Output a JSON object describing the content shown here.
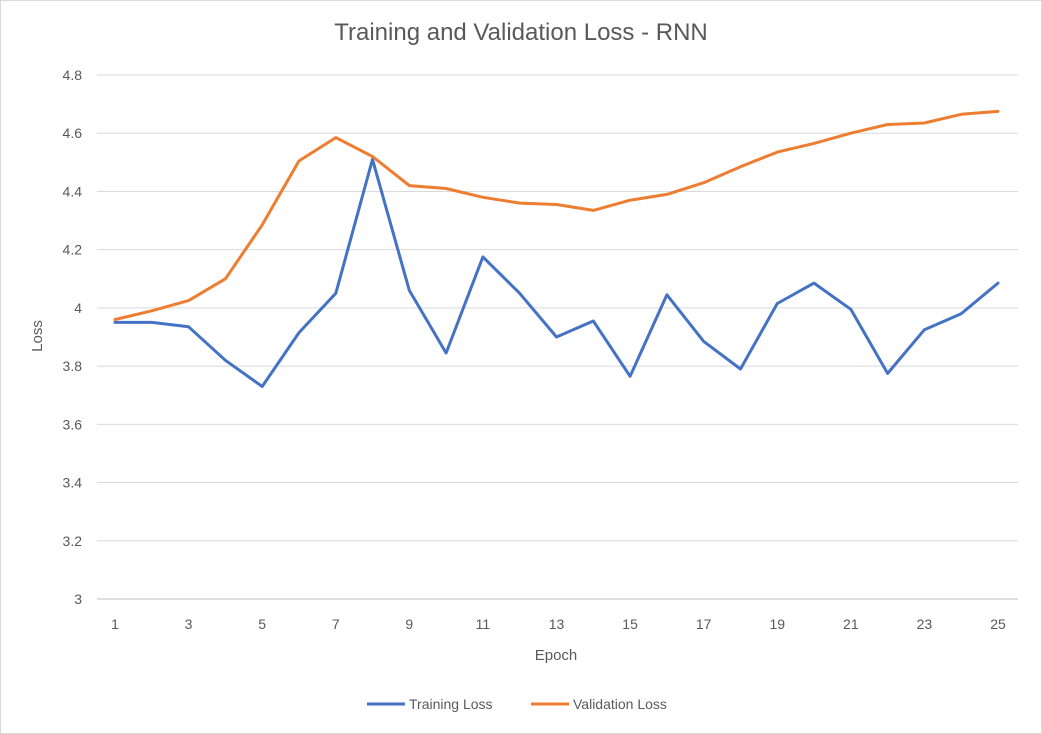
{
  "chart_data": {
    "type": "line",
    "title": "Training and Validation Loss - RNN",
    "xlabel": "Epoch",
    "ylabel": "Loss",
    "x": [
      1,
      2,
      3,
      4,
      5,
      6,
      7,
      8,
      9,
      10,
      11,
      12,
      13,
      14,
      15,
      16,
      17,
      18,
      19,
      20,
      21,
      22,
      23,
      24,
      25
    ],
    "x_tick_labels": [
      "1",
      "3",
      "5",
      "7",
      "9",
      "11",
      "13",
      "15",
      "17",
      "19",
      "21",
      "23",
      "25"
    ],
    "y_tick_labels": [
      "3",
      "3.2",
      "3.4",
      "3.6",
      "3.8",
      "4",
      "4.2",
      "4.4",
      "4.6",
      "4.8"
    ],
    "ylim": [
      3,
      4.8
    ],
    "grid": true,
    "legend_position": "bottom",
    "series": [
      {
        "name": "Training Loss",
        "color": "#4472c4",
        "values": [
          3.95,
          3.95,
          3.935,
          3.82,
          3.73,
          3.915,
          4.05,
          4.51,
          4.06,
          3.845,
          4.175,
          4.05,
          3.9,
          3.955,
          3.765,
          4.045,
          3.885,
          3.79,
          4.015,
          4.085,
          3.995,
          3.775,
          3.925,
          3.98,
          4.085
        ]
      },
      {
        "name": "Validation Loss",
        "color": "#ed7d31",
        "values": [
          3.96,
          3.99,
          4.025,
          4.1,
          4.285,
          4.505,
          4.585,
          4.52,
          4.42,
          4.41,
          4.38,
          4.36,
          4.355,
          4.335,
          4.37,
          4.39,
          4.43,
          4.485,
          4.535,
          4.565,
          4.6,
          4.63,
          4.635,
          4.665,
          4.675
        ]
      }
    ]
  }
}
